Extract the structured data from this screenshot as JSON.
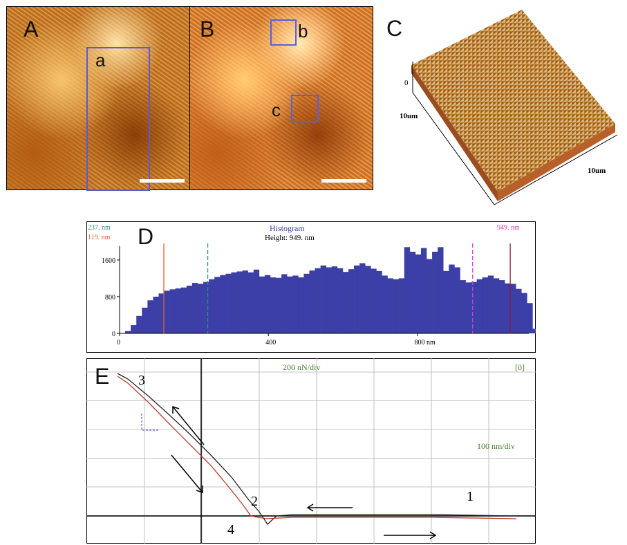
{
  "panel_a": {
    "letter": "A",
    "subregion_label": "a"
  },
  "panel_b": {
    "letter": "B",
    "subregion_labels": [
      "b",
      "c"
    ]
  },
  "panel_c": {
    "letter": "C",
    "axis_x_label": "10um",
    "axis_y_label": "10um",
    "axis_z_label": "0"
  },
  "panel_d": {
    "letter": "D",
    "title": "Histogram",
    "height_label": "Height: 949. nm",
    "marker_green": "237. nm",
    "marker_red": "119. nm",
    "marker_magenta": "949. nm",
    "colors": {
      "bars": "#3b3fa6",
      "green": "#3a8a7a",
      "red": "#e06030",
      "magenta": "#cc44cc",
      "darkred": "#8b1a3a"
    }
  },
  "panel_e": {
    "letter": "E",
    "force_scale": "200 nN/div",
    "distance_scale": "100 nm/div",
    "bracket": "[0]",
    "point_labels": [
      "1",
      "2",
      "3",
      "4"
    ],
    "colors": {
      "approach": "#222222",
      "retract": "#c0392b",
      "grid": "#b0b0b0"
    }
  },
  "chart_data": {
    "type": "bar",
    "title": "Histogram",
    "xlabel": "nm",
    "ylabel": "",
    "xlim": [
      0,
      1100
    ],
    "ylim": [
      0,
      1900
    ],
    "x_ticks": [
      0,
      400,
      800
    ],
    "y_ticks": [
      0,
      800,
      1600
    ],
    "x_tick_labels": [
      "0",
      "400",
      "800 nm"
    ],
    "y_tick_labels": [
      "0",
      "800",
      "1600"
    ],
    "markers_nm": {
      "red": 119,
      "green": 237,
      "magenta": 949,
      "darkred": 1050
    },
    "bin_width": 15,
    "values": [
      0,
      50,
      180,
      380,
      560,
      720,
      800,
      870,
      930,
      960,
      980,
      1000,
      1040,
      1100,
      1080,
      1120,
      1180,
      1230,
      1270,
      1300,
      1330,
      1350,
      1370,
      1330,
      1390,
      1240,
      1270,
      1220,
      1210,
      1290,
      1240,
      1260,
      1220,
      1300,
      1370,
      1420,
      1480,
      1440,
      1460,
      1420,
      1340,
      1400,
      1480,
      1530,
      1470,
      1410,
      1360,
      1260,
      1200,
      1180,
      1200,
      1880,
      1780,
      1720,
      1860,
      1620,
      1780,
      1880,
      1360,
      1500,
      1440,
      1160,
      1110,
      1120,
      1180,
      1220,
      1260,
      1200,
      1160,
      1090,
      1080,
      970,
      880,
      660,
      100,
      100,
      100,
      100,
      100,
      100,
      50,
      30,
      20,
      10,
      5,
      0
    ]
  }
}
